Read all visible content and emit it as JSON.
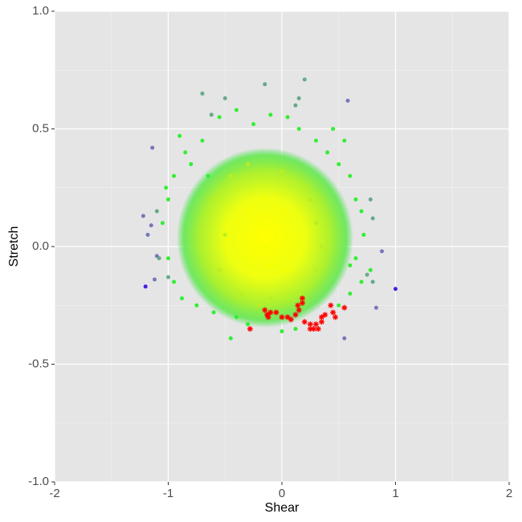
{
  "chart_data": {
    "type": "scatter",
    "x_label": "Shear",
    "y_label": "Stretch",
    "xlim": [
      -2,
      2
    ],
    "ylim": [
      -1,
      1
    ],
    "xticks": [
      -2,
      -1,
      0,
      1,
      2
    ],
    "yticks": [
      {
        "value": -1,
        "label": "-1.0"
      },
      {
        "value": -0.5,
        "label": "-0.5"
      },
      {
        "value": 0,
        "label": "0.0"
      },
      {
        "value": 0.5,
        "label": "0.5"
      },
      {
        "value": 1,
        "label": "1.0"
      }
    ],
    "x_minor_grid": [
      -1.5,
      -0.5,
      0.5,
      1.5
    ],
    "y_minor_grid": [
      -0.75,
      -0.25,
      0.25,
      0.75
    ],
    "grid": true,
    "series": [
      {
        "color": "#33ee33",
        "shape": "circle",
        "x": [
          -0.9,
          -0.85,
          -0.95,
          -1.0,
          -1.05,
          -1.0,
          -0.95,
          -0.88,
          -0.7,
          -0.55,
          -0.4,
          -0.25,
          -0.1,
          0.05,
          0.15,
          0.3,
          0.4,
          0.5,
          0.6,
          0.65,
          0.7,
          0.72,
          0.65,
          0.7,
          0.6,
          0.5,
          -0.4,
          -0.3,
          -0.45,
          0.0,
          0.12,
          -0.8,
          -0.75,
          -0.65,
          0.55,
          0.78,
          -0.6,
          0.45,
          -1.02,
          0.6
        ],
        "values": [
          0.47,
          0.4,
          0.3,
          0.2,
          0.1,
          -0.05,
          -0.15,
          -0.22,
          0.45,
          0.55,
          0.58,
          0.52,
          0.56,
          0.55,
          0.5,
          0.45,
          0.4,
          0.35,
          0.3,
          0.2,
          0.15,
          0.05,
          -0.05,
          -0.15,
          -0.2,
          -0.25,
          -0.3,
          -0.33,
          -0.39,
          -0.36,
          -0.35,
          0.35,
          -0.25,
          0.3,
          0.45,
          -0.1,
          -0.28,
          0.5,
          0.25,
          -0.08
        ]
      },
      {
        "color": "#66aa88",
        "shape": "circle",
        "x": [
          -0.7,
          -0.15,
          0.2,
          0.15,
          -0.5,
          -1.0,
          -1.1,
          -1.08,
          0.8,
          0.8,
          0.78,
          -0.62,
          0.12,
          0.75
        ],
        "values": [
          0.65,
          0.69,
          0.71,
          0.63,
          0.63,
          -0.13,
          0.15,
          -0.05,
          0.12,
          -0.15,
          0.2,
          0.56,
          0.6,
          -0.12
        ]
      },
      {
        "color": "#7777bb",
        "shape": "circle",
        "x": [
          -1.14,
          0.58,
          -1.22,
          -1.18,
          -1.15,
          -1.1,
          0.88,
          0.83,
          0.55,
          -1.12
        ],
        "values": [
          0.42,
          0.62,
          0.13,
          0.05,
          0.09,
          -0.04,
          -0.02,
          -0.26,
          -0.39,
          -0.14
        ]
      },
      {
        "color": "#4a1de0",
        "shape": "circle",
        "x": [
          -1.2,
          1.0
        ],
        "values": [
          -0.17,
          -0.18
        ]
      },
      {
        "color": "#bbee22",
        "shape": "circle",
        "x": [
          -0.6,
          -0.55,
          -0.45,
          -0.3,
          0.0,
          0.2,
          0.3,
          0.3,
          0.15,
          -0.1,
          -0.35,
          -0.5,
          0.25,
          -0.2,
          0.35
        ],
        "values": [
          0.2,
          -0.1,
          0.3,
          0.35,
          0.32,
          0.25,
          0.1,
          -0.1,
          -0.2,
          -0.22,
          -0.2,
          0.05,
          0.2,
          -0.25,
          0.0
        ]
      },
      {
        "color": "#f4ff00",
        "shape": "circle",
        "x": [
          -0.15,
          -0.2,
          -0.05,
          -0.1,
          -0.25,
          0.0,
          -0.3,
          0.05,
          -0.15,
          0.1
        ],
        "values": [
          0.0,
          0.1,
          0.05,
          -0.08,
          -0.05,
          0.15,
          0.15,
          -0.1,
          0.2,
          0.05
        ]
      },
      {
        "color": "#ff0000",
        "shape": "star",
        "x": [
          -0.15,
          -0.13,
          -0.1,
          -0.05,
          0.0,
          0.05,
          0.08,
          0.12,
          0.15,
          0.18,
          0.18,
          0.2,
          0.25,
          0.25,
          0.28,
          0.3,
          0.32,
          0.35,
          0.38,
          0.35,
          0.45,
          0.47,
          0.55,
          -0.28,
          0.14,
          -0.12,
          0.43
        ],
        "values": [
          -0.27,
          -0.29,
          -0.28,
          -0.28,
          -0.3,
          -0.3,
          -0.31,
          -0.29,
          -0.27,
          -0.24,
          -0.22,
          -0.32,
          -0.33,
          -0.35,
          -0.35,
          -0.33,
          -0.35,
          -0.32,
          -0.29,
          -0.3,
          -0.28,
          -0.3,
          -0.26,
          -0.35,
          -0.25,
          -0.3,
          -0.25
        ]
      }
    ]
  }
}
